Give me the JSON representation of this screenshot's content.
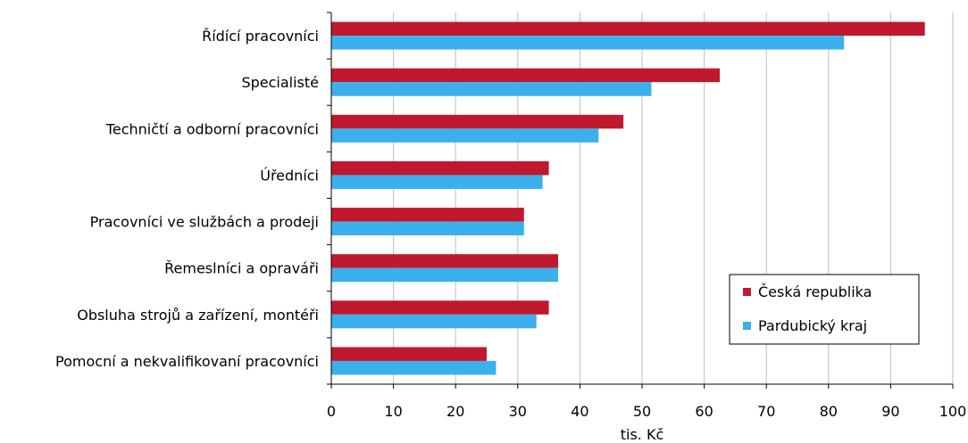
{
  "chart_data": {
    "type": "bar",
    "orientation": "horizontal",
    "categories": [
      "Řídící pracovníci",
      "Specialisté",
      "Techničtí a odborní pracovníci",
      "Úředníci",
      "Pracovníci ve službách a prodeji",
      "Řemeslníci a opraváři",
      "Obsluha strojů a zařízení, montéři",
      "Pomocní a nekvalifikovaní pracovníci"
    ],
    "series": [
      {
        "name": "Česká republika",
        "color": "#c0182d",
        "values": [
          95.5,
          62.5,
          47,
          35,
          31,
          36.5,
          35,
          25
        ]
      },
      {
        "name": "Pardubický kraj",
        "color": "#3bb0ec",
        "values": [
          82.5,
          51.5,
          43,
          34,
          31,
          36.5,
          33,
          26.5
        ]
      }
    ],
    "xlabel": "tis. Kč",
    "ylabel": "",
    "xlim": [
      0,
      100
    ],
    "xticks": [
      "0",
      "10",
      "20",
      "30",
      "40",
      "50",
      "60",
      "70",
      "80",
      "90",
      "100"
    ],
    "grid": "vertical",
    "legend_position": "bottom-right"
  }
}
